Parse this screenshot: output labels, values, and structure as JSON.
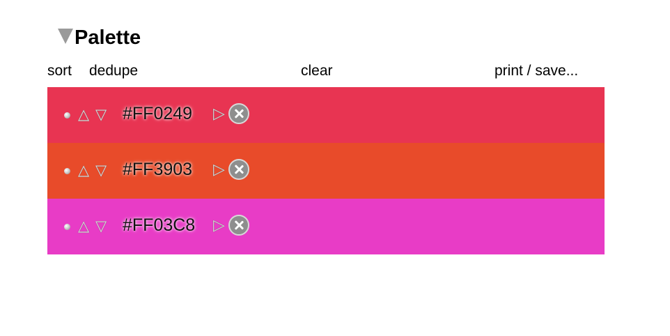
{
  "panel": {
    "title": "Palette"
  },
  "toolbar": {
    "sort": "sort",
    "dedupe": "dedupe",
    "clear": "clear",
    "print_save": "print / save..."
  },
  "icons": {
    "disclosure": "triangle-down-icon",
    "move_up": "triangle-up-outline-icon",
    "move_down": "triangle-down-outline-icon",
    "expand": "triangle-right-outline-icon",
    "remove": "close-circle-icon",
    "drag": "dot-icon"
  },
  "colors": [
    {
      "hex": "#FF0249",
      "swatch": "#E83452"
    },
    {
      "hex": "#FF3903",
      "swatch": "#E84B2A"
    },
    {
      "hex": "#FF03C8",
      "swatch": "#E83CC6"
    }
  ],
  "glyphs": {
    "up": "△",
    "down": "▽",
    "expand": "▷"
  }
}
